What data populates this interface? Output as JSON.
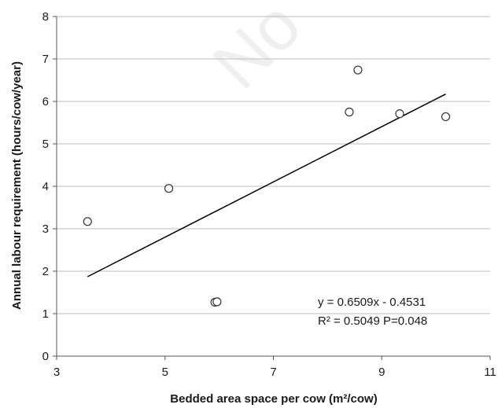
{
  "chart_data": {
    "type": "scatter",
    "xlabel": "Bedded area space per cow (m²/cow)",
    "ylabel": "Annual labour requirement (hours/cow/year)",
    "xlim": [
      3,
      11
    ],
    "ylim": [
      0,
      8
    ],
    "x_ticks": [
      "3",
      "5",
      "7",
      "9",
      "11"
    ],
    "y_ticks": [
      "0",
      "1",
      "2",
      "3",
      "4",
      "5",
      "6",
      "7",
      "8"
    ],
    "grid": "horizontal",
    "points": [
      {
        "x": 3.57,
        "y": 3.17
      },
      {
        "x": 5.07,
        "y": 3.95
      },
      {
        "x": 5.92,
        "y": 1.27
      },
      {
        "x": 5.96,
        "y": 1.28
      },
      {
        "x": 8.4,
        "y": 5.75
      },
      {
        "x": 8.56,
        "y": 6.74
      },
      {
        "x": 9.33,
        "y": 5.71
      },
      {
        "x": 10.18,
        "y": 5.64
      }
    ],
    "trendline": {
      "slope": 0.6509,
      "intercept": -0.4531,
      "x_start": 3.57,
      "x_end": 10.18
    },
    "annotation": {
      "line1": "y = 0.6509x - 0.4531",
      "line2": "R² = 0.5049 P=0.048"
    },
    "watermark": "No"
  }
}
